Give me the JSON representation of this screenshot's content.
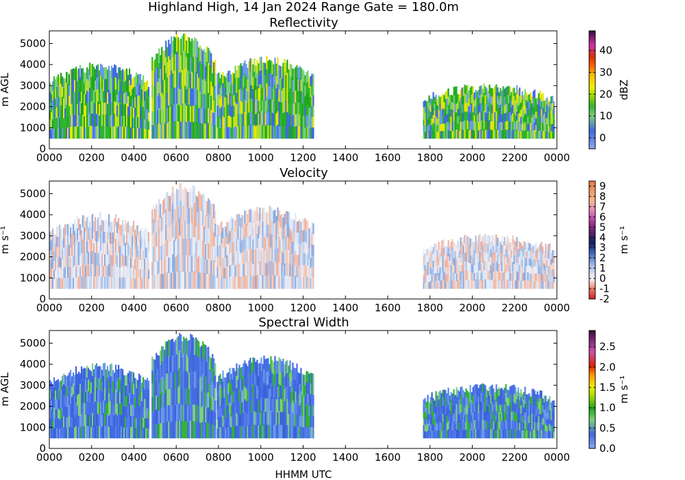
{
  "figure": {
    "title": "Highland High, 14 Jan 2024 Range Gate = 180.0m",
    "xlabel": "HHMM UTC"
  },
  "chart_data": [
    {
      "type": "heatmap",
      "title": "Reflectivity",
      "ylabel": "m AGL",
      "colorbar_label": "dBZ",
      "colorbar_ticks": [
        "0",
        "10",
        "20",
        "30",
        "40"
      ],
      "colorbar_range": [
        -5,
        49
      ],
      "x_ticks": [
        "0000",
        "0200",
        "0400",
        "0600",
        "0800",
        "1000",
        "1200",
        "1400",
        "1600",
        "1800",
        "2000",
        "2200",
        "0000"
      ],
      "y_ticks": [
        "0",
        "1000",
        "2000",
        "3000",
        "4000",
        "5000"
      ],
      "xlim": [
        0,
        2400
      ],
      "ylim": [
        0,
        5600
      ],
      "segments": [
        {
          "start": "0000",
          "end": "0440",
          "bottom_m": 500,
          "top_m": 4000
        },
        {
          "start": "0450",
          "end": "0750",
          "bottom_m": 500,
          "top_m": 5400
        },
        {
          "start": "0755",
          "end": "1230",
          "bottom_m": 500,
          "top_m": 4300
        },
        {
          "start": "1740",
          "end": "2350",
          "bottom_m": 500,
          "top_m": 3000
        }
      ]
    },
    {
      "type": "heatmap",
      "title": "Velocity",
      "ylabel": "m s⁻¹",
      "colorbar_label": "m s⁻¹",
      "colorbar_ticks": [
        "9",
        "8",
        "7",
        "6",
        "5",
        "4",
        "3",
        "2",
        "1",
        "0",
        "-1",
        "-2"
      ],
      "colorbar_range": [
        -2,
        9.5
      ],
      "x_ticks": [
        "0000",
        "0200",
        "0400",
        "0600",
        "0800",
        "1000",
        "1200",
        "1400",
        "1600",
        "1800",
        "2000",
        "2200",
        "0000"
      ],
      "y_ticks": [
        "0",
        "1000",
        "2000",
        "3000",
        "4000",
        "5000"
      ],
      "xlim": [
        0,
        2400
      ],
      "ylim": [
        0,
        5600
      ],
      "segments": [
        {
          "start": "0000",
          "end": "0440",
          "bottom_m": 500,
          "top_m": 4000
        },
        {
          "start": "0450",
          "end": "0750",
          "bottom_m": 500,
          "top_m": 5400
        },
        {
          "start": "0755",
          "end": "1230",
          "bottom_m": 500,
          "top_m": 4300
        },
        {
          "start": "1740",
          "end": "2350",
          "bottom_m": 500,
          "top_m": 3000
        }
      ]
    },
    {
      "type": "heatmap",
      "title": "Spectral Width",
      "ylabel": "m AGL",
      "colorbar_label": "m s⁻¹",
      "colorbar_ticks": [
        "0.0",
        "0.5",
        "1.0",
        "1.5",
        "2.0",
        "2.5"
      ],
      "colorbar_range": [
        0,
        2.9
      ],
      "x_ticks": [
        "0000",
        "0200",
        "0400",
        "0600",
        "0800",
        "1000",
        "1200",
        "1400",
        "1600",
        "1800",
        "2000",
        "2200",
        "0000"
      ],
      "y_ticks": [
        "0",
        "1000",
        "2000",
        "3000",
        "4000",
        "5000"
      ],
      "xlim": [
        0,
        2400
      ],
      "ylim": [
        0,
        5600
      ],
      "segments": [
        {
          "start": "0000",
          "end": "0440",
          "bottom_m": 500,
          "top_m": 4000
        },
        {
          "start": "0450",
          "end": "0750",
          "bottom_m": 500,
          "top_m": 5400
        },
        {
          "start": "0755",
          "end": "1230",
          "bottom_m": 500,
          "top_m": 4300
        },
        {
          "start": "1740",
          "end": "2350",
          "bottom_m": 500,
          "top_m": 3000
        }
      ]
    }
  ]
}
